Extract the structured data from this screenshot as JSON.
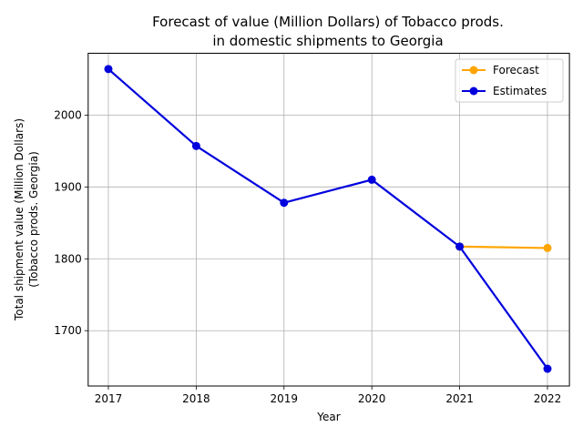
{
  "chart_data": {
    "type": "line",
    "title_line1": "Forecast of value (Million Dollars) of Tobacco prods.",
    "title_line2": "in domestic shipments to Georgia",
    "xlabel": "Year",
    "ylabel_line1": "Total shipment value (Million Dollars)",
    "ylabel_line2": "(Tobacco prods. Georgia)",
    "x": [
      2017,
      2018,
      2019,
      2020,
      2021,
      2022
    ],
    "xlim": [
      2016.77,
      2022.25
    ],
    "ylim": [
      1623,
      2086
    ],
    "yticks": [
      1700,
      1800,
      1900,
      2000
    ],
    "grid": true,
    "legend_position": "top-right",
    "series": [
      {
        "name": "Forecast",
        "color": "#ffa500",
        "x": [
          2021,
          2022
        ],
        "values": [
          1817,
          1815
        ]
      },
      {
        "name": "Estimates",
        "color": "#0000dd",
        "x": [
          2017,
          2018,
          2019,
          2020,
          2021,
          2022
        ],
        "values": [
          2064,
          1957,
          1878,
          1910,
          1817,
          1647
        ]
      }
    ]
  }
}
